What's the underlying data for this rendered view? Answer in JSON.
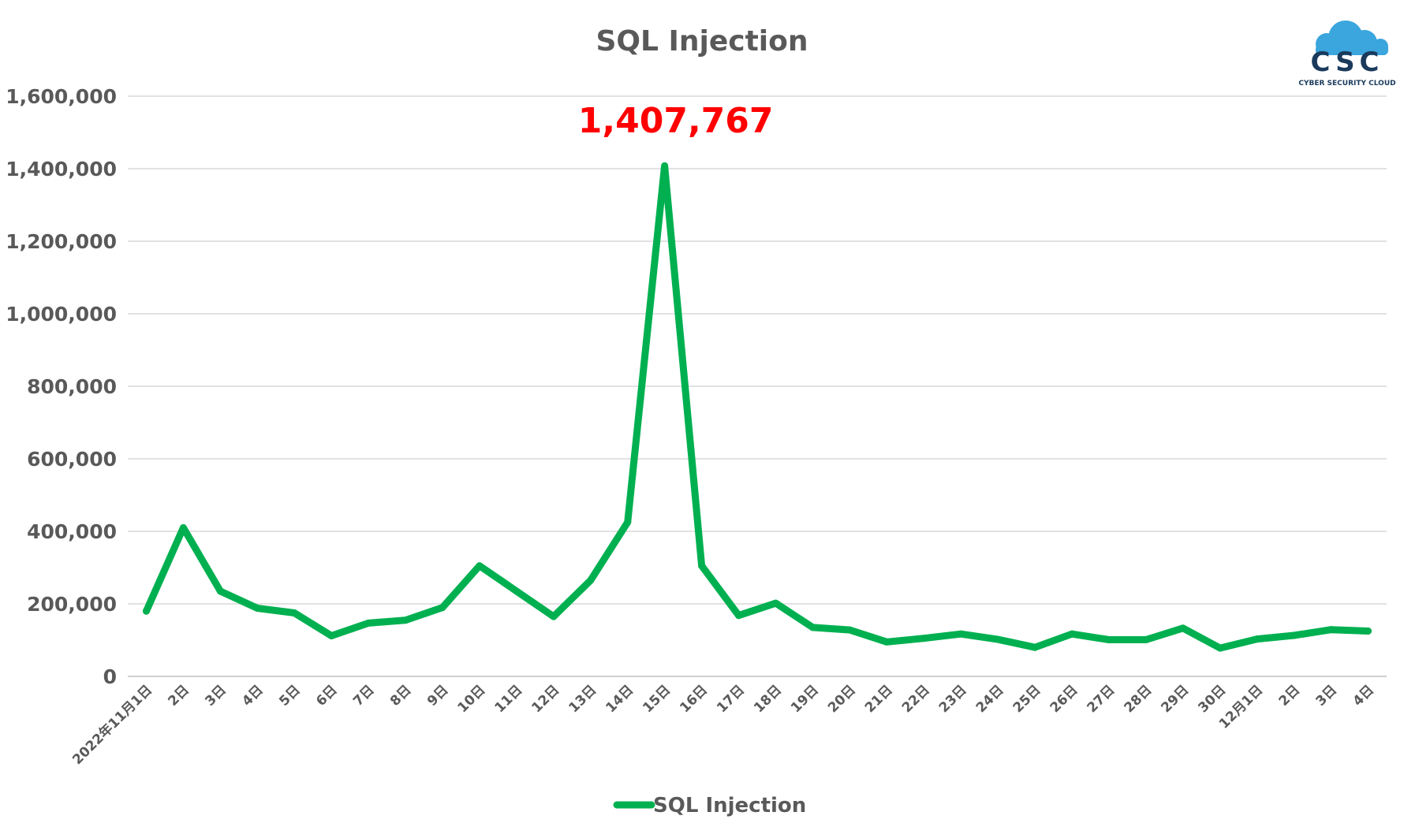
{
  "logo": {
    "wordmark": "CSC",
    "tagline": "CYBER SECURITY CLOUD",
    "icon": "cloud-icon",
    "colors": {
      "cloud": "#3aa6dd",
      "text": "#1b3a5c"
    }
  },
  "chart_data": {
    "type": "line",
    "title": "SQL Injection",
    "xlabel": "",
    "ylabel": "",
    "ylim": [
      0,
      1600000
    ],
    "yticks": [
      0,
      200000,
      400000,
      600000,
      800000,
      1000000,
      1200000,
      1400000,
      1600000
    ],
    "ytick_labels": [
      "0",
      "200,000",
      "400,000",
      "600,000",
      "800,000",
      "1,000,000",
      "1,200,000",
      "1,400,000",
      "1,600,000"
    ],
    "grid": true,
    "legend": "bottom",
    "categories": [
      "2022年11月1日",
      "2日",
      "3日",
      "4日",
      "5日",
      "6日",
      "7日",
      "8日",
      "9日",
      "10日",
      "11日",
      "12日",
      "13日",
      "14日",
      "15日",
      "16日",
      "17日",
      "18日",
      "19日",
      "20日",
      "21日",
      "22日",
      "23日",
      "24日",
      "25日",
      "26日",
      "27日",
      "28日",
      "29日",
      "30日",
      "12月1日",
      "2日",
      "3日",
      "4日"
    ],
    "series": [
      {
        "name": "SQL Injection",
        "color": "#00b050",
        "values": [
          180000,
          410000,
          235000,
          188000,
          175000,
          112000,
          147000,
          155000,
          190000,
          305000,
          235000,
          165000,
          265000,
          425000,
          1407767,
          305000,
          168000,
          202000,
          135000,
          128000,
          95000,
          105000,
          117000,
          102000,
          80000,
          117000,
          101000,
          101000,
          133000,
          78000,
          103000,
          113000,
          129000,
          125000
        ]
      }
    ],
    "annotation": {
      "text": "1,407,767",
      "category_index": 14,
      "color": "#ff0000"
    }
  }
}
